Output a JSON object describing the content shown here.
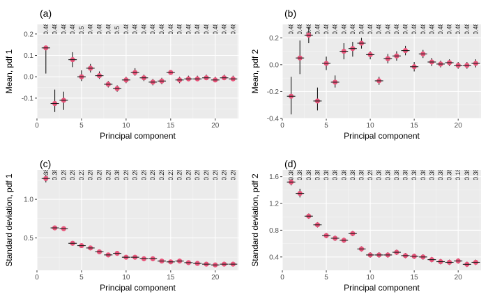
{
  "chart_data": [
    {
      "type": "scatter",
      "panel_tag": "(a)",
      "xlabel": "Principal component",
      "ylabel": "Mean, pdf 1",
      "xlim": [
        0,
        22.6
      ],
      "ylim": [
        -0.195,
        0.245
      ],
      "xticks": [
        0,
        5,
        10,
        15,
        20
      ],
      "yticks": [
        -0.1,
        0.0,
        0.1,
        0.2
      ],
      "ytick_labels": [
        "-0.1",
        "0.0",
        "0.1",
        "0.2"
      ],
      "grid": true,
      "top_labels": [
        "0.48",
        "0.48",
        "0.48",
        "0.48",
        "0.5",
        "0.48",
        "0.48",
        "0.48",
        "0.5",
        "0.48",
        "0.48",
        "0.48",
        "0.48",
        "0.48",
        "0.48",
        "0.48",
        "0.48",
        "0.48",
        "0.48",
        "0.48",
        "0.48",
        "0.48"
      ],
      "x": [
        1,
        2,
        3,
        4,
        5,
        6,
        7,
        8,
        9,
        10,
        11,
        12,
        13,
        14,
        15,
        16,
        17,
        18,
        19,
        20,
        21,
        22
      ],
      "y": [
        0.135,
        -0.125,
        -0.11,
        0.08,
        0.0,
        0.04,
        0.005,
        -0.035,
        -0.055,
        -0.015,
        0.02,
        -0.005,
        -0.025,
        -0.02,
        0.02,
        -0.015,
        -0.01,
        -0.01,
        -0.005,
        -0.015,
        -0.005,
        -0.01
      ],
      "err_lo": [
        0.015,
        -0.165,
        -0.155,
        0.045,
        -0.02,
        0.02,
        -0.01,
        -0.05,
        -0.07,
        -0.03,
        0.005,
        -0.02,
        -0.04,
        -0.035,
        0.01,
        -0.03,
        -0.02,
        -0.02,
        -0.015,
        -0.025,
        -0.015,
        -0.02
      ],
      "err_hi": [
        0.145,
        -0.06,
        -0.07,
        0.115,
        0.03,
        0.06,
        0.025,
        -0.02,
        -0.04,
        0.0,
        0.04,
        0.01,
        -0.01,
        -0.005,
        0.03,
        0.0,
        0.005,
        0.005,
        0.01,
        0.0,
        0.01,
        0.005
      ],
      "marker_color": "#e8547a"
    },
    {
      "type": "scatter",
      "panel_tag": "(b)",
      "xlabel": "Principal component",
      "ylabel": "Mean, pdf 2",
      "xlim": [
        0,
        22.6
      ],
      "ylim": [
        -0.4,
        0.3
      ],
      "xticks": [
        0,
        5,
        10,
        15,
        20
      ],
      "yticks": [
        -0.4,
        -0.2,
        0.0,
        0.2
      ],
      "ytick_labels": [
        "-0.4",
        "-0.2",
        "0.0",
        "0.2"
      ],
      "grid": true,
      "top_labels": [
        "0.48",
        "0.48",
        "0.48",
        "0.48",
        "0.48",
        "0.48",
        "0.48",
        "0.48",
        "0.48",
        "0.48",
        "0.48",
        "0.48",
        "0.48",
        "0.48",
        "0.48",
        "0.48",
        "0.48",
        "0.48",
        "0.48",
        "0.48",
        "0.48",
        "0.48"
      ],
      "x": [
        1,
        2,
        3,
        4,
        5,
        6,
        7,
        8,
        9,
        10,
        11,
        12,
        13,
        14,
        15,
        16,
        17,
        18,
        19,
        20,
        21,
        22
      ],
      "y": [
        -0.235,
        0.05,
        0.22,
        -0.27,
        0.01,
        -0.13,
        0.1,
        0.12,
        0.16,
        0.075,
        -0.12,
        0.045,
        0.065,
        0.105,
        -0.015,
        0.08,
        0.02,
        0.005,
        0.015,
        -0.005,
        -0.005,
        0.01
      ],
      "err_lo": [
        -0.37,
        -0.07,
        0.16,
        -0.34,
        -0.04,
        -0.17,
        0.04,
        0.06,
        0.12,
        0.04,
        -0.15,
        0.01,
        0.03,
        0.07,
        -0.05,
        0.05,
        -0.01,
        -0.02,
        -0.01,
        -0.03,
        -0.03,
        -0.02
      ],
      "err_hi": [
        -0.09,
        0.18,
        0.28,
        -0.17,
        0.06,
        -0.08,
        0.16,
        0.17,
        0.2,
        0.1,
        -0.09,
        0.08,
        0.1,
        0.14,
        0.02,
        0.11,
        0.05,
        0.03,
        0.04,
        0.02,
        0.02,
        0.04
      ],
      "marker_color": "#e8547a"
    },
    {
      "type": "scatter",
      "panel_tag": "(c)",
      "xlabel": "Principal component",
      "ylabel": "Standard deviation, pdf 1",
      "xlim": [
        0,
        22.6
      ],
      "ylim": [
        0.08,
        1.38
      ],
      "xticks": [
        0,
        5,
        10,
        15,
        20
      ],
      "yticks": [
        0.5,
        1.0
      ],
      "ytick_labels": [
        "0.5",
        "1.0"
      ],
      "grid": true,
      "top_labels": [
        "0.38",
        "0.38",
        "0.28",
        "0.28",
        "0.23",
        "0.28",
        "0.28",
        "0.28",
        "0.38",
        "0.28",
        "0.28",
        "0.28",
        "0.28",
        "0.28",
        "0.23",
        "0.28",
        "0.28",
        "0.28",
        "0.28",
        "0.28",
        "0.28",
        "0.28"
      ],
      "x": [
        1,
        2,
        3,
        4,
        5,
        6,
        7,
        8,
        9,
        10,
        11,
        12,
        13,
        14,
        15,
        16,
        17,
        18,
        19,
        20,
        21,
        22
      ],
      "y": [
        1.27,
        0.63,
        0.62,
        0.43,
        0.4,
        0.37,
        0.32,
        0.28,
        0.3,
        0.25,
        0.25,
        0.23,
        0.23,
        0.2,
        0.19,
        0.2,
        0.18,
        0.17,
        0.16,
        0.15,
        0.16,
        0.16
      ],
      "err_lo": [
        1.22,
        0.6,
        0.59,
        0.4,
        0.37,
        0.34,
        0.29,
        0.25,
        0.27,
        0.22,
        0.22,
        0.2,
        0.2,
        0.17,
        0.16,
        0.17,
        0.15,
        0.14,
        0.13,
        0.12,
        0.13,
        0.13
      ],
      "err_hi": [
        1.32,
        0.66,
        0.65,
        0.46,
        0.43,
        0.4,
        0.35,
        0.31,
        0.33,
        0.28,
        0.28,
        0.26,
        0.26,
        0.23,
        0.22,
        0.23,
        0.21,
        0.2,
        0.19,
        0.18,
        0.19,
        0.19
      ],
      "marker_color": "#e8547a"
    },
    {
      "type": "scatter",
      "panel_tag": "(d)",
      "xlabel": "Principal component",
      "ylabel": "Standard deviation, pdf 2",
      "xlim": [
        0,
        22.6
      ],
      "ylim": [
        0.2,
        1.7
      ],
      "xticks": [
        0,
        5,
        10,
        15,
        20
      ],
      "yticks": [
        0.4,
        0.8,
        1.2,
        1.6
      ],
      "ytick_labels": [
        "0.4",
        "0.8",
        "1.2",
        "1.6"
      ],
      "grid": true,
      "top_labels": [
        "0.38",
        "0.38",
        "0.38",
        "0.38",
        "0.38",
        "0.38",
        "0.38",
        "0.38",
        "0.38",
        "0.28",
        "0.38",
        "0.38",
        "0.38",
        "0.38",
        "0.38",
        "0.38",
        "0.38",
        "0.38",
        "0.38",
        "0.18",
        "0.38",
        "0.38"
      ],
      "x": [
        1,
        2,
        3,
        4,
        5,
        6,
        7,
        8,
        9,
        10,
        11,
        12,
        13,
        14,
        15,
        16,
        17,
        18,
        19,
        20,
        21,
        22
      ],
      "y": [
        1.52,
        1.35,
        1.01,
        0.88,
        0.72,
        0.68,
        0.65,
        0.75,
        0.52,
        0.43,
        0.43,
        0.43,
        0.47,
        0.42,
        0.41,
        0.4,
        0.36,
        0.33,
        0.32,
        0.34,
        0.29,
        0.32
      ],
      "err_lo": [
        1.47,
        1.29,
        0.97,
        0.84,
        0.68,
        0.64,
        0.61,
        0.71,
        0.48,
        0.39,
        0.39,
        0.39,
        0.43,
        0.38,
        0.37,
        0.36,
        0.32,
        0.29,
        0.28,
        0.3,
        0.25,
        0.28
      ],
      "err_hi": [
        1.57,
        1.42,
        1.05,
        0.92,
        0.76,
        0.72,
        0.69,
        0.79,
        0.56,
        0.47,
        0.47,
        0.47,
        0.51,
        0.46,
        0.45,
        0.44,
        0.4,
        0.37,
        0.36,
        0.38,
        0.33,
        0.36
      ],
      "marker_color": "#e8547a"
    }
  ]
}
